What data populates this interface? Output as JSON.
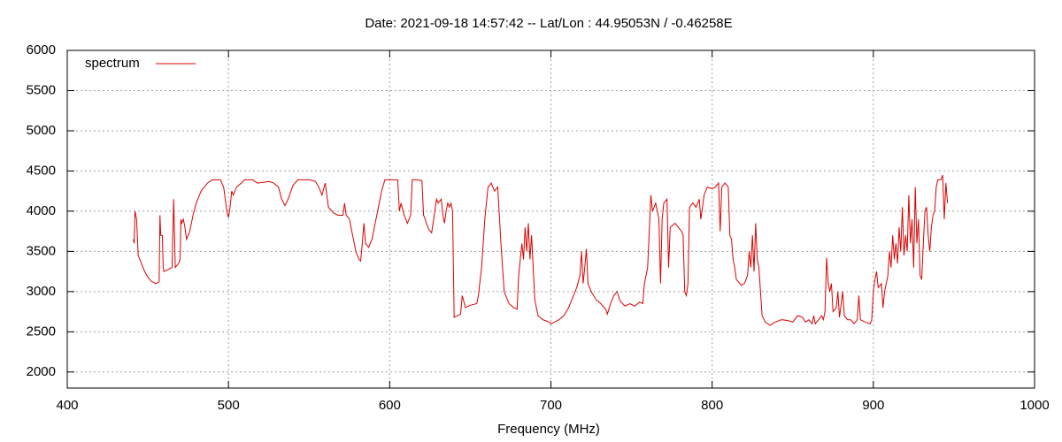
{
  "chart_data": {
    "type": "line",
    "title": "Date: 2021-09-18 14:57:42  --  Lat/Lon : 44.95053N / -0.46258E",
    "x_label": "Frequency (MHz)",
    "xlim": [
      400,
      1000
    ],
    "xticks": [
      400,
      500,
      600,
      700,
      800,
      900,
      1000
    ],
    "ylim": [
      1800,
      6000
    ],
    "yticks": [
      2000,
      2500,
      3000,
      3500,
      4000,
      4500,
      5000,
      5500,
      6000
    ],
    "grid": true,
    "legend": "top-left",
    "x": [
      441,
      441.5,
      442,
      443,
      444,
      446,
      448,
      450,
      452,
      455,
      457,
      457.5,
      458,
      459,
      459.5,
      460,
      463,
      465,
      466,
      467,
      469,
      470,
      470.5,
      471,
      472,
      473,
      474,
      476,
      478,
      480,
      483,
      487,
      490,
      495,
      497,
      499,
      500,
      501,
      502,
      503,
      505,
      508,
      510,
      515,
      518,
      522,
      525,
      528,
      531,
      533,
      535,
      537,
      540,
      543,
      550,
      554,
      556,
      558,
      560,
      561,
      562,
      565,
      568,
      571,
      572,
      573,
      575,
      577,
      579,
      581,
      582,
      583,
      584,
      585,
      587,
      589,
      591,
      593,
      595,
      597,
      602,
      605,
      606,
      607,
      609,
      611,
      613,
      614,
      617,
      620,
      621,
      622,
      624,
      626,
      628,
      629,
      630,
      632,
      633,
      634,
      635,
      636,
      637,
      638,
      639,
      640,
      642,
      644,
      645,
      647,
      650,
      654,
      655,
      657,
      659,
      661,
      663,
      665,
      667,
      669,
      671,
      674,
      677,
      679,
      680,
      682,
      683,
      684,
      685,
      686,
      687,
      688,
      689,
      690,
      692,
      695,
      698,
      700,
      702,
      705,
      708,
      711,
      714,
      716,
      718,
      719,
      720,
      721,
      722,
      723,
      725,
      728,
      731,
      734,
      735,
      737,
      739,
      741,
      743,
      746,
      749,
      752,
      755,
      757,
      758,
      759,
      760,
      762,
      763,
      765,
      767,
      768,
      769,
      770,
      772,
      773,
      774,
      777,
      779,
      781,
      782,
      783,
      784,
      785,
      786,
      788,
      790,
      792,
      793,
      795,
      797,
      800,
      802,
      804,
      805,
      806,
      808,
      810,
      811,
      812,
      813,
      814,
      815,
      818,
      820,
      822,
      823,
      824,
      825,
      826,
      827,
      828,
      829,
      830,
      831,
      833,
      836,
      839,
      843,
      847,
      850,
      853,
      856,
      858,
      860,
      862,
      863,
      864,
      866,
      868,
      869,
      870,
      871,
      872,
      873,
      874,
      875,
      877,
      878,
      879,
      881,
      882,
      884,
      886,
      888,
      890,
      891,
      892,
      895,
      898,
      899,
      900,
      901,
      902,
      903,
      905,
      906,
      907,
      909,
      910,
      911,
      912,
      913,
      914,
      915,
      916,
      917,
      918,
      919,
      920,
      921,
      922,
      923,
      924,
      925,
      926,
      927,
      928,
      929,
      930,
      931,
      932,
      933,
      934,
      935,
      936,
      937,
      938,
      939,
      940,
      942,
      943,
      944,
      945,
      946
    ],
    "series": [
      {
        "name": "spectrum",
        "color": "#dd0000",
        "values": [
          3650,
          3600,
          4000,
          3900,
          3450,
          3350,
          3250,
          3180,
          3130,
          3100,
          3120,
          3950,
          3700,
          3700,
          3300,
          3250,
          3280,
          3300,
          4150,
          3300,
          3350,
          3400,
          3900,
          3850,
          3900,
          3800,
          3650,
          3750,
          3950,
          4100,
          4250,
          4350,
          4390,
          4390,
          4300,
          4000,
          3920,
          4050,
          4250,
          4200,
          4300,
          4350,
          4390,
          4390,
          4350,
          4360,
          4370,
          4350,
          4300,
          4150,
          4070,
          4150,
          4320,
          4390,
          4390,
          4370,
          4300,
          4200,
          4350,
          4200,
          4050,
          3980,
          3950,
          3950,
          4100,
          3950,
          3900,
          3700,
          3500,
          3400,
          3380,
          3600,
          3850,
          3600,
          3550,
          3650,
          3850,
          4050,
          4250,
          4390,
          4390,
          4390,
          4000,
          4100,
          3950,
          3850,
          3950,
          4390,
          4390,
          4380,
          3950,
          3900,
          3780,
          3730,
          4000,
          4150,
          4100,
          4150,
          3950,
          3850,
          4000,
          4100,
          4050,
          4100,
          4000,
          2680,
          2700,
          2720,
          2950,
          2800,
          2830,
          2850,
          2950,
          3300,
          3900,
          4300,
          4350,
          4250,
          4300,
          3600,
          3000,
          2850,
          2800,
          2780,
          3200,
          3600,
          3400,
          3800,
          3500,
          3850,
          3400,
          3700,
          3300,
          2900,
          2700,
          2650,
          2630,
          2600,
          2620,
          2650,
          2700,
          2800,
          2950,
          3050,
          3200,
          3500,
          3100,
          3300,
          3530,
          3100,
          3000,
          2900,
          2850,
          2780,
          2720,
          2850,
          2950,
          3000,
          2880,
          2820,
          2850,
          2820,
          2870,
          2850,
          3100,
          3200,
          3300,
          4200,
          4000,
          4100,
          3900,
          3100,
          3900,
          4100,
          4150,
          3300,
          3800,
          3850,
          3800,
          3750,
          3700,
          3000,
          2950,
          3100,
          4050,
          4100,
          4050,
          4150,
          3900,
          4200,
          4300,
          4280,
          4300,
          4350,
          3750,
          4300,
          4350,
          4300,
          3700,
          3650,
          3400,
          3300,
          3150,
          3080,
          3100,
          3200,
          3500,
          3300,
          3700,
          3250,
          3850,
          3400,
          3300,
          3000,
          2700,
          2620,
          2580,
          2620,
          2650,
          2640,
          2620,
          2700,
          2680,
          2620,
          2650,
          2600,
          2700,
          2600,
          2650,
          2700,
          2650,
          2750,
          3420,
          3100,
          3000,
          3100,
          2750,
          2800,
          3000,
          2680,
          3000,
          2700,
          2650,
          2650,
          2600,
          2650,
          2950,
          2650,
          2620,
          2600,
          2650,
          3000,
          3150,
          3250,
          3050,
          3100,
          2800,
          3000,
          3200,
          3500,
          3300,
          3700,
          3400,
          3600,
          3350,
          3800,
          3500,
          4050,
          3450,
          3700,
          3500,
          4200,
          3600,
          3900,
          3300,
          4300,
          3600,
          3900,
          3200,
          3150,
          3600,
          4000,
          4050,
          3700,
          3500,
          3800,
          3950,
          4000,
          4300,
          4390,
          4390,
          4450,
          3900,
          4350,
          4100
        ]
      }
    ]
  }
}
